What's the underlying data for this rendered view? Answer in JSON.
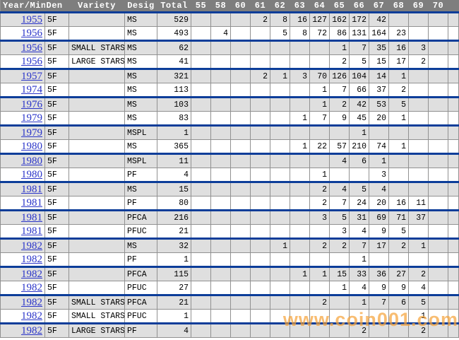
{
  "table": {
    "columns": [
      "Year/Min",
      "Den",
      "Variety",
      "Desig",
      "Total",
      "55",
      "58",
      "60",
      "61",
      "62",
      "63",
      "64",
      "65",
      "66",
      "67",
      "68",
      "69",
      "70"
    ],
    "grade_columns": [
      "55",
      "58",
      "60",
      "61",
      "62",
      "63",
      "64",
      "65",
      "66",
      "67",
      "68",
      "69",
      "70"
    ],
    "rows": [
      {
        "year": "1955",
        "den": "5F",
        "variety": "",
        "desig": "MS",
        "total": 529,
        "grades": {
          "61": 2,
          "62": 8,
          "63": 16,
          "64": 127,
          "65": 162,
          "66": 172,
          "67": 42
        }
      },
      {
        "year": "1956",
        "den": "5F",
        "variety": "",
        "desig": "MS",
        "total": 493,
        "grades": {
          "58": 4,
          "62": 5,
          "63": 8,
          "64": 72,
          "65": 86,
          "66": 131,
          "67": 164,
          "68": 23
        }
      },
      {
        "year": "1956",
        "den": "5F",
        "variety": "SMALL STARS",
        "desig": "MS",
        "total": 62,
        "grades": {
          "65": 1,
          "66": 7,
          "67": 35,
          "68": 16,
          "69": 3
        }
      },
      {
        "year": "1956",
        "den": "5F",
        "variety": "LARGE STARS",
        "desig": "MS",
        "total": 41,
        "grades": {
          "65": 2,
          "66": 5,
          "67": 15,
          "68": 17,
          "69": 2
        }
      },
      {
        "year": "1957",
        "den": "5F",
        "variety": "",
        "desig": "MS",
        "total": 321,
        "grades": {
          "61": 2,
          "62": 1,
          "63": 3,
          "64": 70,
          "65": 126,
          "66": 104,
          "67": 14,
          "68": 1
        }
      },
      {
        "year": "1974",
        "den": "5F",
        "variety": "",
        "desig": "MS",
        "total": 113,
        "grades": {
          "64": 1,
          "65": 7,
          "66": 66,
          "67": 37,
          "68": 2
        }
      },
      {
        "year": "1976",
        "den": "5F",
        "variety": "",
        "desig": "MS",
        "total": 103,
        "grades": {
          "64": 1,
          "65": 2,
          "66": 42,
          "67": 53,
          "68": 5
        }
      },
      {
        "year": "1979",
        "den": "5F",
        "variety": "",
        "desig": "MS",
        "total": 83,
        "grades": {
          "63": 1,
          "64": 7,
          "65": 9,
          "66": 45,
          "67": 20,
          "68": 1
        }
      },
      {
        "year": "1979",
        "den": "5F",
        "variety": "",
        "desig": "MSPL",
        "total": 1,
        "grades": {
          "66": 1
        }
      },
      {
        "year": "1980",
        "den": "5F",
        "variety": "",
        "desig": "MS",
        "total": 365,
        "grades": {
          "63": 1,
          "64": 22,
          "65": 57,
          "66": 210,
          "67": 74,
          "68": 1
        }
      },
      {
        "year": "1980",
        "den": "5F",
        "variety": "",
        "desig": "MSPL",
        "total": 11,
        "grades": {
          "65": 4,
          "66": 6,
          "67": 1
        }
      },
      {
        "year": "1980",
        "den": "5F",
        "variety": "",
        "desig": "PF",
        "total": 4,
        "grades": {
          "64": 1,
          "67": 3
        }
      },
      {
        "year": "1981",
        "den": "5F",
        "variety": "",
        "desig": "MS",
        "total": 15,
        "grades": {
          "64": 2,
          "65": 4,
          "66": 5,
          "67": 4
        }
      },
      {
        "year": "1981",
        "den": "5F",
        "variety": "",
        "desig": "PF",
        "total": 80,
        "grades": {
          "64": 2,
          "65": 7,
          "66": 24,
          "67": 20,
          "68": 16,
          "69": 11
        }
      },
      {
        "year": "1981",
        "den": "5F",
        "variety": "",
        "desig": "PFCA",
        "total": 216,
        "grades": {
          "64": 3,
          "65": 5,
          "66": 31,
          "67": 69,
          "68": 71,
          "69": 37
        }
      },
      {
        "year": "1981",
        "den": "5F",
        "variety": "",
        "desig": "PFUC",
        "total": 21,
        "grades": {
          "65": 3,
          "66": 4,
          "67": 9,
          "68": 5
        }
      },
      {
        "year": "1982",
        "den": "5F",
        "variety": "",
        "desig": "MS",
        "total": 32,
        "grades": {
          "62": 1,
          "64": 2,
          "65": 2,
          "66": 7,
          "67": 17,
          "68": 2,
          "69": 1
        }
      },
      {
        "year": "1982",
        "den": "5F",
        "variety": "",
        "desig": "PF",
        "total": 1,
        "grades": {
          "66": 1
        }
      },
      {
        "year": "1982",
        "den": "5F",
        "variety": "",
        "desig": "PFCA",
        "total": 115,
        "grades": {
          "63": 1,
          "64": 1,
          "65": 15,
          "66": 33,
          "67": 36,
          "68": 27,
          "69": 2
        }
      },
      {
        "year": "1982",
        "den": "5F",
        "variety": "",
        "desig": "PFUC",
        "total": 27,
        "grades": {
          "65": 1,
          "66": 4,
          "67": 9,
          "68": 9,
          "69": 4
        }
      },
      {
        "year": "1982",
        "den": "5F",
        "variety": "SMALL STARS",
        "desig": "PFCA",
        "total": 21,
        "grades": {
          "64": 2,
          "66": 1,
          "67": 7,
          "68": 6,
          "69": 5
        }
      },
      {
        "year": "1982",
        "den": "5F",
        "variety": "SMALL STARS",
        "desig": "PFUC",
        "total": 1,
        "grades": {
          "69": 1
        }
      },
      {
        "year": "1982",
        "den": "5F",
        "variety": "LARGE STARS",
        "desig": "PF",
        "total": 4,
        "grades": {
          "66": 2,
          "69": 2
        }
      }
    ]
  },
  "watermark": {
    "text": "www.coin001.com",
    "color": "#F6A43C"
  },
  "colors": {
    "header_bg": "#7E7E7E",
    "header_text": "#FFFFFF",
    "row_alt": "#DFDFDF",
    "row_base": "#FFFFFF",
    "grid_line": "#919191",
    "separator_blue": "#0C3D99",
    "year_link_blue": "#2B35C9",
    "watermark_orange": "#F6A43C"
  }
}
